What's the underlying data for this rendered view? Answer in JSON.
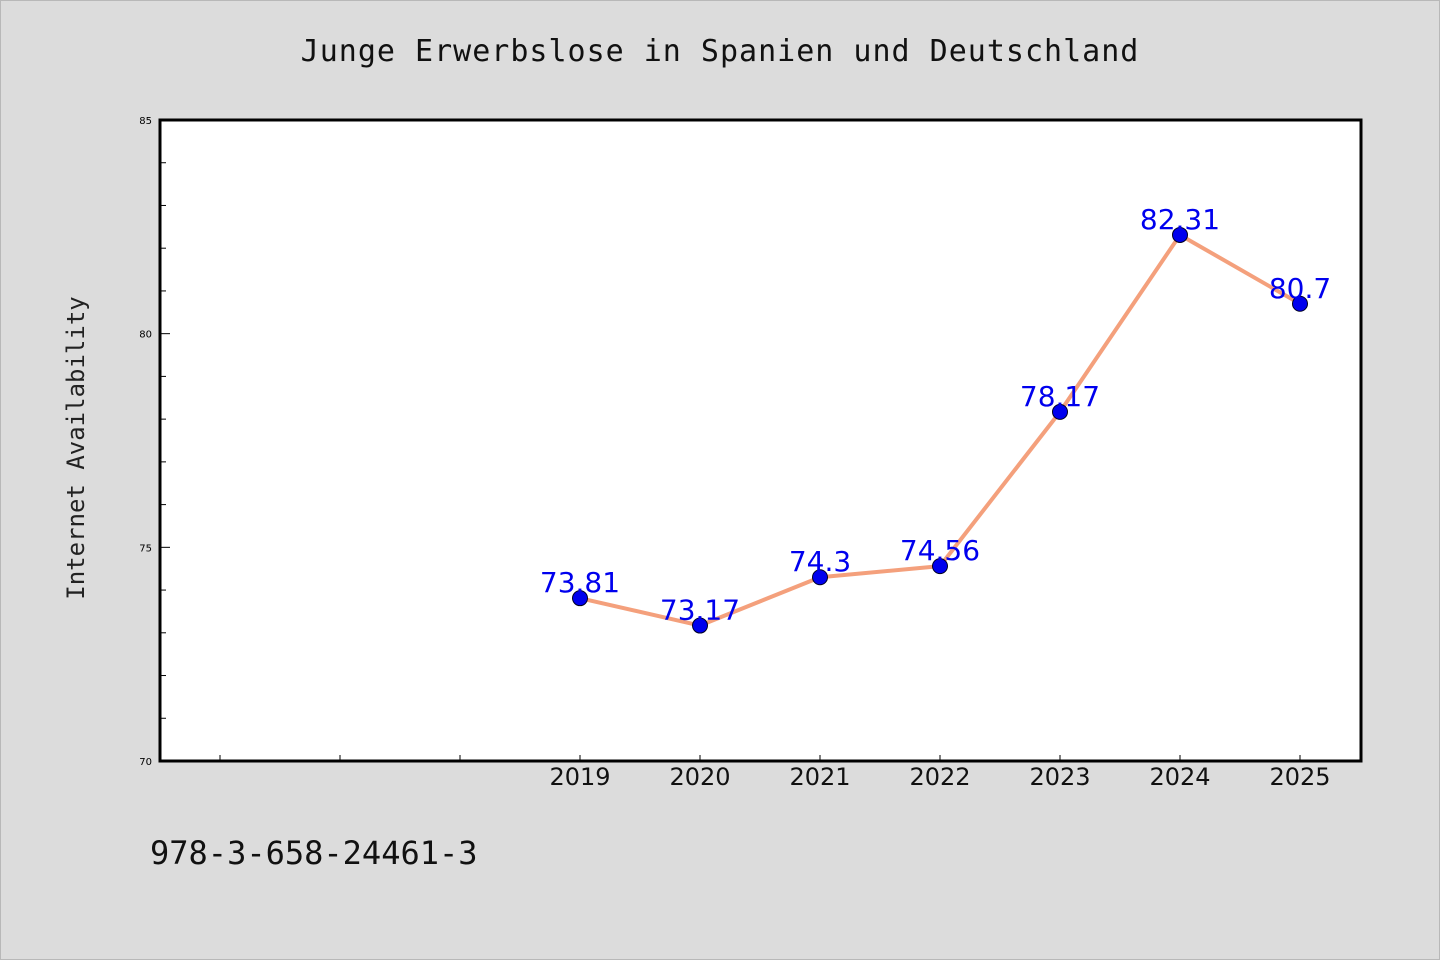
{
  "chart_data": {
    "type": "line",
    "title": "Junge Erwerbslose in Spanien und Deutschland",
    "xlabel": "",
    "ylabel": "Internet Availability",
    "categories": [
      "2019",
      "2020",
      "2021",
      "2022",
      "2023",
      "2024",
      "2025"
    ],
    "series": [
      {
        "values": [
          73.81,
          73.17,
          74.3,
          74.56,
          78.17,
          82.31,
          80.7
        ],
        "labels": [
          "73.81",
          "73.17",
          "74.3",
          "74.56",
          "78.17",
          "82.31",
          "80.7"
        ]
      }
    ],
    "ylim": [
      70,
      85
    ],
    "yticks": [
      70,
      75,
      80,
      85
    ],
    "ytick_labels": [
      "70",
      "75",
      "80",
      "85"
    ],
    "grid": false,
    "line_color": "#f4a07c",
    "marker_color": "#0000ee",
    "label_color": "#0000ee"
  },
  "footer": {
    "isbn": "978-3-658-24461-3"
  }
}
